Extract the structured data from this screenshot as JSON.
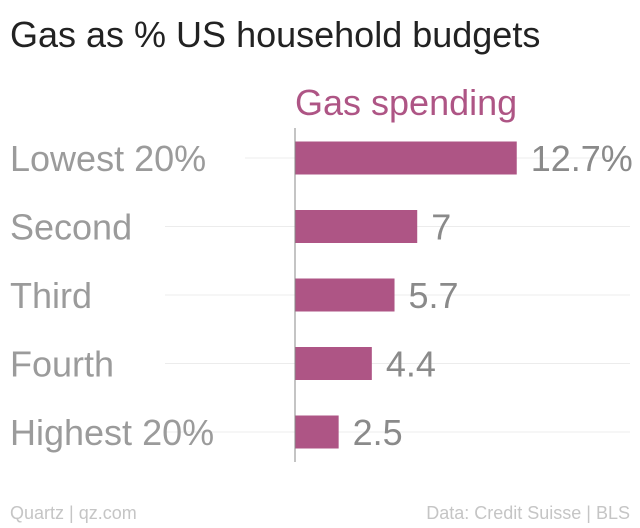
{
  "title": "Gas as % US household budgets",
  "footer": {
    "left": "Quartz | qz.com",
    "right": "Data: Credit Suisse | BLS"
  },
  "colors": {
    "bar": "#ae5585",
    "series_label": "#ae5585",
    "category_text": "#9b9b9b",
    "value_text": "#8a8a8a",
    "axis": "#888888",
    "gridline": "#ececec"
  },
  "chart_data": {
    "type": "bar",
    "orientation": "horizontal",
    "series_label": "Gas spending",
    "categories": [
      "Lowest 20%",
      "Second",
      "Third",
      "Fourth",
      "Highest 20%"
    ],
    "values": [
      12.7,
      7,
      5.7,
      4.4,
      2.5
    ],
    "value_labels": [
      "12.7%",
      "7",
      "5.7",
      "4.4",
      "2.5"
    ],
    "xlim": [
      0,
      18.9
    ],
    "grid": true,
    "legend": "none"
  }
}
